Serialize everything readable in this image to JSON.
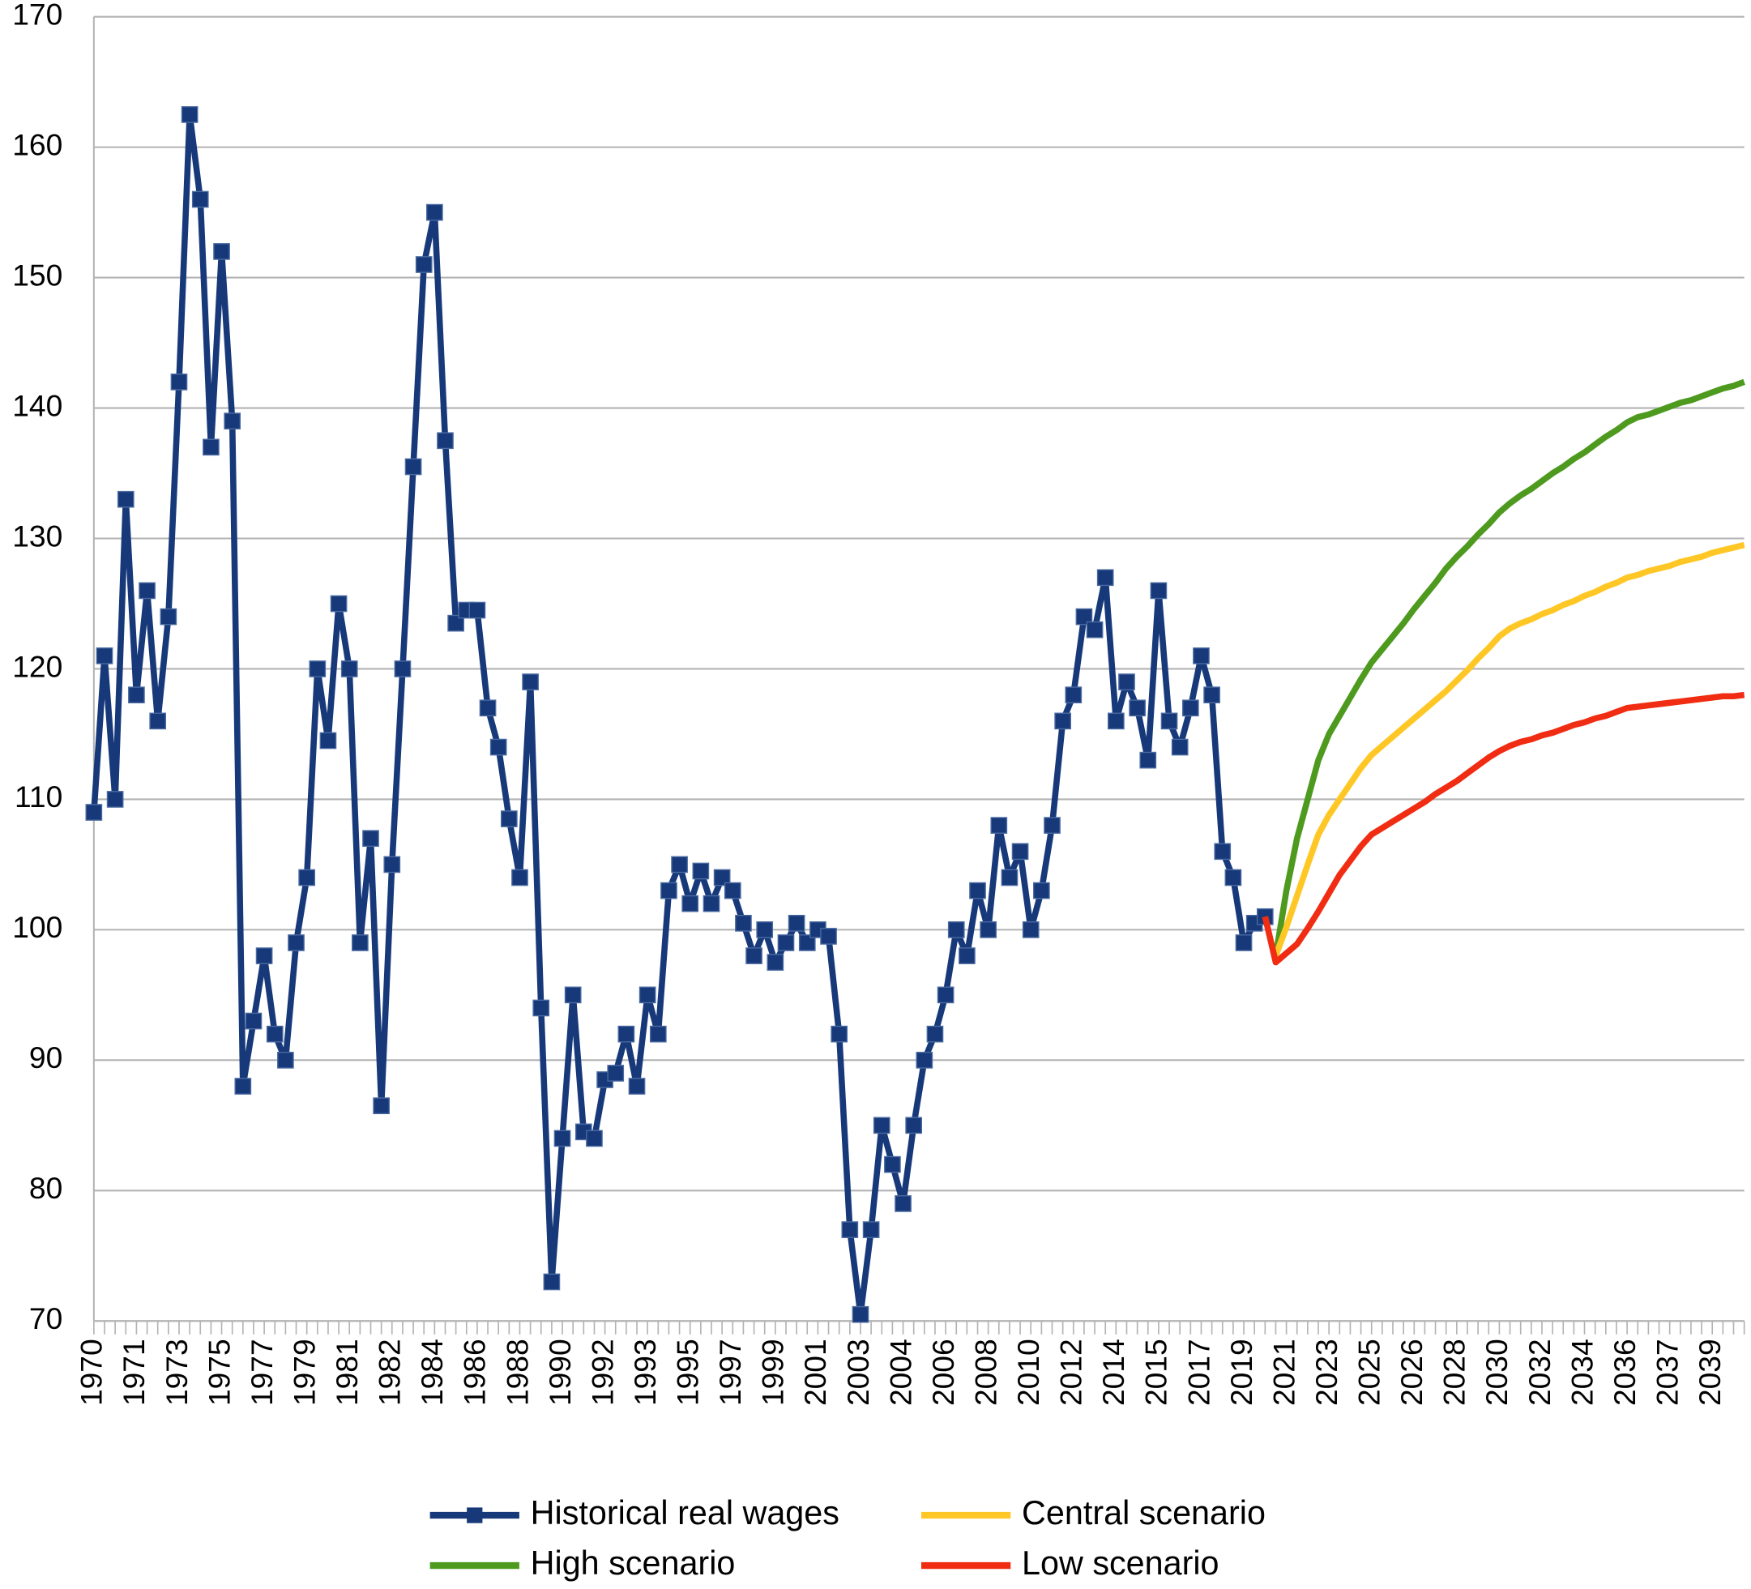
{
  "chart_data": {
    "type": "line",
    "categories": [
      "1970",
      null,
      null,
      null,
      "1971",
      null,
      null,
      null,
      "1973",
      null,
      null,
      null,
      "1975",
      null,
      null,
      null,
      "1977",
      null,
      null,
      null,
      "1979",
      null,
      null,
      null,
      "1981",
      null,
      null,
      null,
      "1982",
      null,
      null,
      null,
      "1984",
      null,
      null,
      null,
      "1986",
      null,
      null,
      null,
      "1988",
      null,
      null,
      null,
      "1990",
      null,
      null,
      null,
      "1992",
      null,
      null,
      null,
      "1993",
      null,
      null,
      null,
      "1995",
      null,
      null,
      null,
      "1997",
      null,
      null,
      null,
      "1999",
      null,
      null,
      null,
      "2001",
      null,
      null,
      null,
      "2003",
      null,
      null,
      null,
      "2004",
      null,
      null,
      null,
      "2006",
      null,
      null,
      null,
      "2008",
      null,
      null,
      null,
      "2010",
      null,
      null,
      null,
      "2012",
      null,
      null,
      null,
      "2014",
      null,
      null,
      null,
      "2015",
      null,
      null,
      null,
      "2017",
      null,
      null,
      null,
      "2019",
      null,
      null,
      null,
      "2021",
      null,
      null,
      null,
      "2023",
      null,
      null,
      null,
      "2025",
      null,
      null,
      null,
      "2026",
      null,
      null,
      null,
      "2028",
      null,
      null,
      null,
      "2030",
      null,
      null,
      null,
      "2032",
      null,
      null,
      null,
      "2034",
      null,
      null,
      null,
      "2036",
      null,
      null,
      null,
      "2037",
      null,
      null,
      null,
      "2039",
      null,
      null,
      null
    ],
    "series": [
      {
        "name": "Historical real wages",
        "color": "#17397a",
        "marker": "square",
        "values": [
          109,
          121,
          110,
          133,
          118,
          126,
          116,
          124,
          142,
          162.5,
          156,
          137,
          152,
          139,
          88,
          93,
          98,
          92,
          90,
          99,
          104,
          120,
          114.5,
          125,
          120,
          99,
          107,
          86.5,
          105,
          120,
          135.5,
          151,
          155,
          137.5,
          123.5,
          124.5,
          124.5,
          117,
          114,
          108.5,
          104,
          119,
          94,
          73,
          84,
          95,
          84.5,
          84,
          88.5,
          89,
          92,
          88,
          95,
          92,
          103,
          105,
          102,
          104.5,
          102,
          104,
          103,
          100.5,
          98,
          100,
          97.5,
          99,
          100.5,
          99,
          100,
          99.5,
          92,
          77,
          70.5,
          77,
          85,
          82,
          79,
          85,
          90,
          92,
          95,
          100,
          98,
          103,
          100,
          108,
          104,
          106,
          100,
          103,
          108,
          116,
          118,
          124,
          123,
          127,
          116,
          119,
          117,
          113,
          126,
          116,
          114,
          117,
          121,
          118,
          106,
          104,
          99,
          100.5,
          101,
          null,
          null,
          null,
          null,
          null,
          null,
          null,
          null,
          null,
          null,
          null,
          null,
          null,
          null,
          null,
          null,
          null,
          null,
          null,
          null,
          null,
          null,
          null,
          null,
          null,
          null,
          null,
          null,
          null,
          null,
          null,
          null,
          null,
          null,
          null,
          null,
          null,
          null,
          null,
          null,
          null,
          null,
          null,
          null,
          null
        ]
      },
      {
        "name": "High scenario",
        "color": "#4e9a1f",
        "values": [
          null,
          null,
          null,
          null,
          null,
          null,
          null,
          null,
          null,
          null,
          null,
          null,
          null,
          null,
          null,
          null,
          null,
          null,
          null,
          null,
          null,
          null,
          null,
          null,
          null,
          null,
          null,
          null,
          null,
          null,
          null,
          null,
          null,
          null,
          null,
          null,
          null,
          null,
          null,
          null,
          null,
          null,
          null,
          null,
          null,
          null,
          null,
          null,
          null,
          null,
          null,
          null,
          null,
          null,
          null,
          null,
          null,
          null,
          null,
          null,
          null,
          null,
          null,
          null,
          null,
          null,
          null,
          null,
          null,
          null,
          null,
          null,
          null,
          null,
          null,
          null,
          null,
          null,
          null,
          null,
          null,
          null,
          null,
          null,
          null,
          null,
          null,
          null,
          null,
          null,
          null,
          null,
          null,
          null,
          null,
          null,
          null,
          null,
          null,
          null,
          null,
          null,
          null,
          null,
          null,
          null,
          null,
          null,
          null,
          null,
          null,
          98,
          103,
          107,
          110,
          113,
          115,
          116.4,
          117.8,
          119.2,
          120.5,
          121.5,
          122.5,
          123.5,
          124.6,
          125.6,
          126.6,
          127.7,
          128.6,
          129.4,
          130.3,
          131.1,
          132,
          132.7,
          133.3,
          133.8,
          134.4,
          135,
          135.5,
          136.1,
          136.6,
          137.2,
          137.8,
          138.3,
          138.9,
          139.3,
          139.5,
          139.8,
          140.1,
          140.4,
          140.6,
          140.9,
          141.2,
          141.5,
          141.7,
          142
        ]
      },
      {
        "name": "Central scenario",
        "color": "#ffc726",
        "values": [
          null,
          null,
          null,
          null,
          null,
          null,
          null,
          null,
          null,
          null,
          null,
          null,
          null,
          null,
          null,
          null,
          null,
          null,
          null,
          null,
          null,
          null,
          null,
          null,
          null,
          null,
          null,
          null,
          null,
          null,
          null,
          null,
          null,
          null,
          null,
          null,
          null,
          null,
          null,
          null,
          null,
          null,
          null,
          null,
          null,
          null,
          null,
          null,
          null,
          null,
          null,
          null,
          null,
          null,
          null,
          null,
          null,
          null,
          null,
          null,
          null,
          null,
          null,
          null,
          null,
          null,
          null,
          null,
          null,
          null,
          null,
          null,
          null,
          null,
          null,
          null,
          null,
          null,
          null,
          null,
          null,
          null,
          null,
          null,
          null,
          null,
          null,
          null,
          null,
          null,
          null,
          null,
          null,
          null,
          null,
          null,
          null,
          null,
          null,
          null,
          null,
          null,
          null,
          null,
          null,
          null,
          null,
          null,
          null,
          null,
          null,
          98,
          100.2,
          102.6,
          105,
          107.3,
          108.8,
          110,
          111.2,
          112.4,
          113.4,
          114.1,
          114.8,
          115.5,
          116.2,
          116.9,
          117.6,
          118.3,
          119.1,
          119.9,
          120.8,
          121.6,
          122.5,
          123.1,
          123.5,
          123.8,
          124.2,
          124.5,
          124.9,
          125.2,
          125.6,
          125.9,
          126.3,
          126.6,
          127,
          127.2,
          127.5,
          127.7,
          127.9,
          128.2,
          128.4,
          128.6,
          128.9,
          129.1,
          129.3,
          129.5
        ]
      },
      {
        "name": "Low scenario",
        "color": "#f02d12",
        "values": [
          null,
          null,
          null,
          null,
          null,
          null,
          null,
          null,
          null,
          null,
          null,
          null,
          null,
          null,
          null,
          null,
          null,
          null,
          null,
          null,
          null,
          null,
          null,
          null,
          null,
          null,
          null,
          null,
          null,
          null,
          null,
          null,
          null,
          null,
          null,
          null,
          null,
          null,
          null,
          null,
          null,
          null,
          null,
          null,
          null,
          null,
          null,
          null,
          null,
          null,
          null,
          null,
          null,
          null,
          null,
          null,
          null,
          null,
          null,
          null,
          null,
          null,
          null,
          null,
          null,
          null,
          null,
          null,
          null,
          null,
          null,
          null,
          null,
          null,
          null,
          null,
          null,
          null,
          null,
          null,
          null,
          null,
          null,
          null,
          null,
          null,
          null,
          null,
          null,
          null,
          null,
          null,
          null,
          null,
          null,
          null,
          null,
          null,
          null,
          null,
          null,
          null,
          null,
          null,
          null,
          null,
          null,
          null,
          null,
          null,
          101,
          97.5,
          98.2,
          98.9,
          100.1,
          101.4,
          102.8,
          104.2,
          105.3,
          106.4,
          107.3,
          107.8,
          108.3,
          108.8,
          109.3,
          109.8,
          110.4,
          110.9,
          111.4,
          112,
          112.6,
          113.2,
          113.7,
          114.1,
          114.4,
          114.6,
          114.9,
          115.1,
          115.4,
          115.7,
          115.9,
          116.2,
          116.4,
          116.7,
          117,
          117.1,
          117.2,
          117.3,
          117.4,
          117.5,
          117.6,
          117.7,
          117.8,
          117.9,
          117.9,
          118
        ]
      }
    ],
    "ylim": [
      70,
      170
    ],
    "yticks": [
      70,
      80,
      90,
      100,
      110,
      120,
      130,
      140,
      150,
      160,
      170
    ],
    "grid": true
  }
}
